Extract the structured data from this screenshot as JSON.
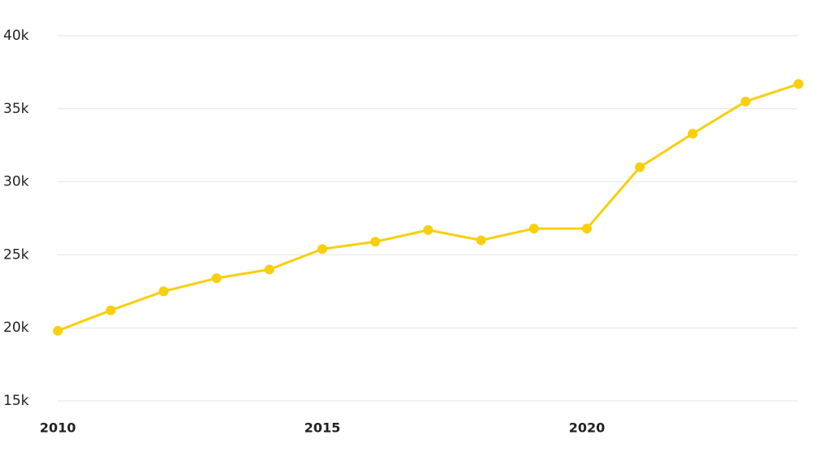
{
  "chart_data": {
    "type": "line",
    "x": [
      2010,
      2011,
      2012,
      2013,
      2014,
      2015,
      2016,
      2017,
      2018,
      2019,
      2020,
      2021,
      2022,
      2023,
      2024
    ],
    "series": [
      {
        "color": "#f7cf0d",
        "values": [
          19800,
          21200,
          22500,
          23400,
          24000,
          25400,
          25900,
          26700,
          26000,
          26800,
          26800,
          31000,
          33300,
          35500,
          36700
        ]
      }
    ],
    "xlim": [
      2010,
      2024
    ],
    "xticks": [
      2010,
      2015,
      2020
    ],
    "ylim": [
      15000,
      40000
    ],
    "yticks": [
      {
        "value": 15000,
        "label": "15k"
      },
      {
        "value": 20000,
        "label": "20k"
      },
      {
        "value": 25000,
        "label": "25k"
      },
      {
        "value": 30000,
        "label": "30k"
      },
      {
        "value": 35000,
        "label": "35k"
      },
      {
        "value": 40000,
        "label": "40k"
      }
    ],
    "grid": true
  }
}
